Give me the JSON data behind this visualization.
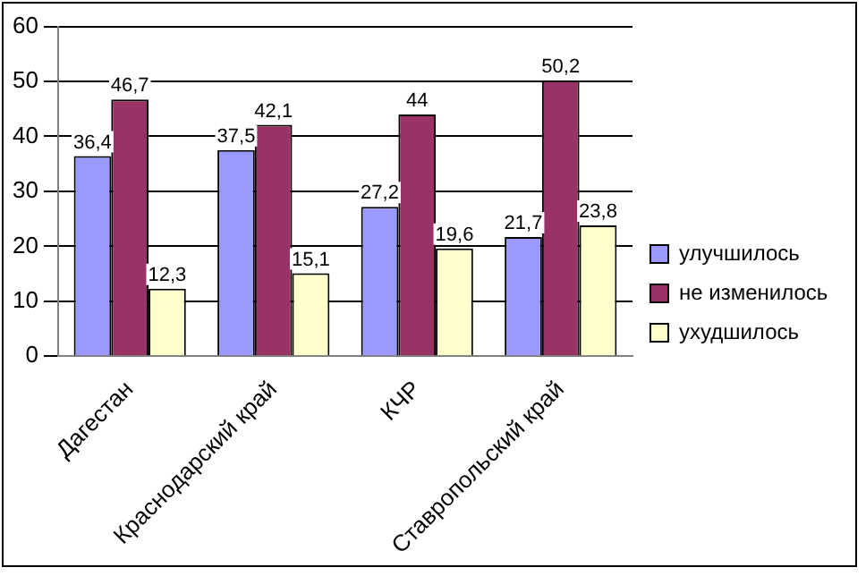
{
  "chart_data": {
    "type": "bar",
    "categories": [
      "Дагестан",
      "Краснодарский край",
      "КЧР",
      "Ставропольский край"
    ],
    "series": [
      {
        "name": "улучшилось",
        "color": "#9999ff",
        "values": [
          36.4,
          37.5,
          27.2,
          21.7
        ],
        "value_labels": [
          "36,4",
          "37,5",
          "27,2",
          "21,7"
        ]
      },
      {
        "name": "не изменилось",
        "color": "#993366",
        "values": [
          46.7,
          42.1,
          44,
          50.2
        ],
        "value_labels": [
          "46,7",
          "42,1",
          "44",
          "50,2"
        ]
      },
      {
        "name": "ухудшилось",
        "color": "#ffffcc",
        "values": [
          12.3,
          15.1,
          19.6,
          23.8
        ],
        "value_labels": [
          "12,3",
          "15,1",
          "19,6",
          "23,8"
        ]
      }
    ],
    "ylim": [
      0,
      60
    ],
    "yticks": [
      0,
      10,
      20,
      30,
      40,
      50,
      60
    ],
    "grid": "y",
    "legend": "right"
  }
}
